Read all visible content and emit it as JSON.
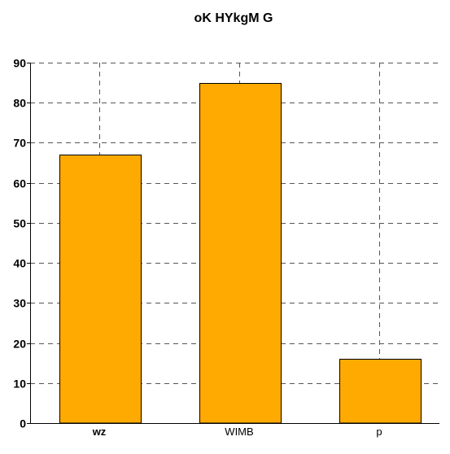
{
  "chart_data": {
    "type": "bar",
    "title": "oK HYkgM G",
    "xlabel": "",
    "ylabel": "",
    "categories": [
      "wz",
      "WIMB",
      "p"
    ],
    "values": [
      67,
      85,
      16
    ],
    "ylim": [
      0,
      90
    ],
    "yticks": [
      0,
      10,
      20,
      30,
      40,
      50,
      60,
      70,
      80,
      90
    ],
    "grid": true,
    "grid_style": "dashed",
    "legend": "none",
    "colors": {
      "bar_fill": "#FFAA00",
      "bar_stroke": "#000000",
      "grid": "#555555",
      "axis": "#000000"
    }
  }
}
